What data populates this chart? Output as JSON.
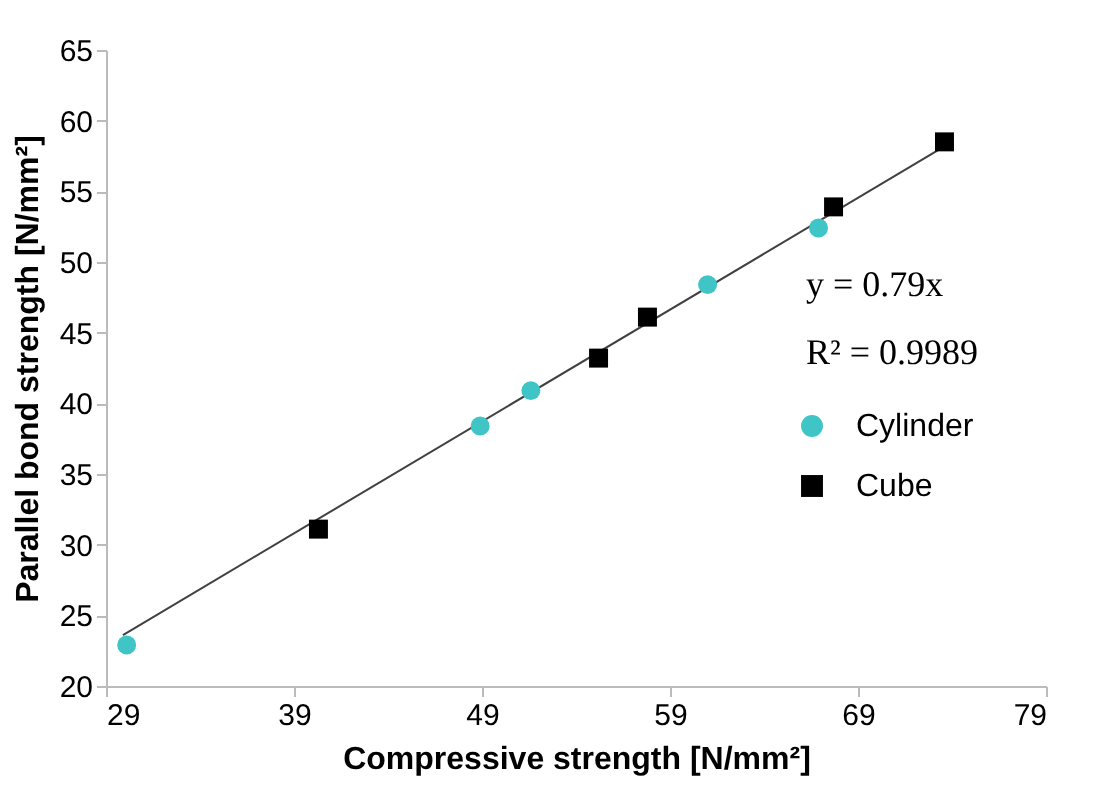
{
  "chart_data": {
    "type": "scatter",
    "xlabel": "Compressive strength [N/mm²]",
    "ylabel": "Parallel bond strength [N/mm²]",
    "xlim": [
      29,
      79
    ],
    "xticks": [
      29,
      39,
      49,
      59,
      69,
      79
    ],
    "ylim": [
      20,
      65
    ],
    "yticks": [
      20,
      25,
      30,
      35,
      40,
      45,
      50,
      55,
      60,
      65
    ],
    "grid": false,
    "legend": "right",
    "series": [
      {
        "name": "Cylinder",
        "color": "#3fc5c5",
        "marker": "circle",
        "x": [
          30.1,
          48.9,
          51.6,
          61.0,
          66.9
        ],
        "values": [
          22.9,
          38.4,
          40.9,
          48.4,
          52.4
        ]
      },
      {
        "name": "Cube",
        "color": "#000000",
        "marker": "square",
        "x": [
          40.3,
          55.2,
          57.8,
          67.7,
          73.6
        ],
        "values": [
          31.1,
          43.2,
          46.1,
          53.9,
          58.5
        ]
      },
      {
        "type": "line",
        "color": "#404040",
        "x": [
          29.9,
          74.0
        ],
        "values": [
          23.6,
          58.5
        ]
      }
    ],
    "annotations": [
      "y = 0.79x",
      "R² = 0.9989"
    ]
  }
}
